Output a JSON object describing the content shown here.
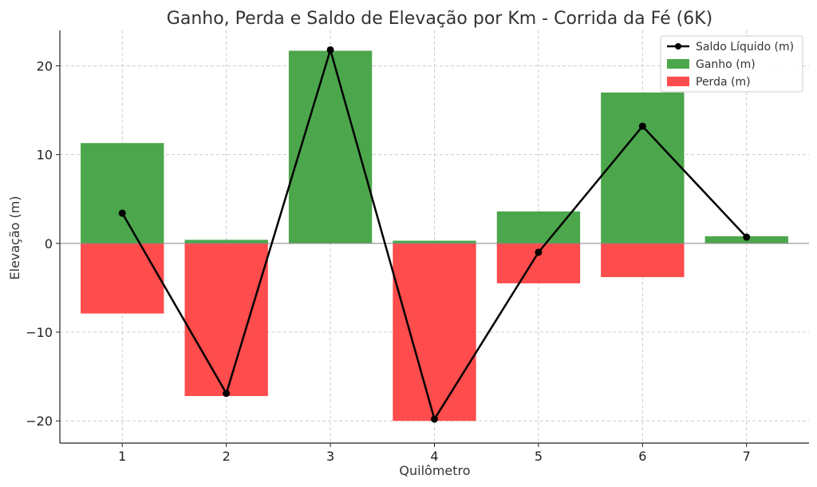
{
  "chart_data": {
    "type": "bar",
    "title": "Ganho, Perda e Saldo de Elevação por Km - Corrida da Fé (6K)",
    "xlabel": "Quilômetro",
    "ylabel": "Elevação (m)",
    "categories": [
      "1",
      "2",
      "3",
      "4",
      "5",
      "6",
      "7"
    ],
    "ylim": [
      -22.5,
      24
    ],
    "yticks": [
      -20,
      -10,
      0,
      10,
      20
    ],
    "ytick_labels": [
      "−20",
      "−10",
      "0",
      "10",
      "20"
    ],
    "grid": true,
    "legend_position": "top-right",
    "series": [
      {
        "name": "Ganho (m)",
        "type": "bar",
        "color": "#4ca64c",
        "values": [
          11.3,
          0.4,
          21.7,
          0.3,
          3.6,
          17.0,
          0.8
        ]
      },
      {
        "name": "Perda (m)",
        "type": "bar",
        "color": "#ff4c4c",
        "values": [
          -7.9,
          -17.2,
          0,
          -20.0,
          -4.5,
          -3.8,
          0
        ]
      },
      {
        "name": "Saldo Líquido (m)",
        "type": "line",
        "color": "#000000",
        "marker": "circle",
        "values": [
          3.4,
          -16.9,
          21.8,
          -19.8,
          -1.0,
          13.2,
          0.7
        ]
      }
    ]
  }
}
